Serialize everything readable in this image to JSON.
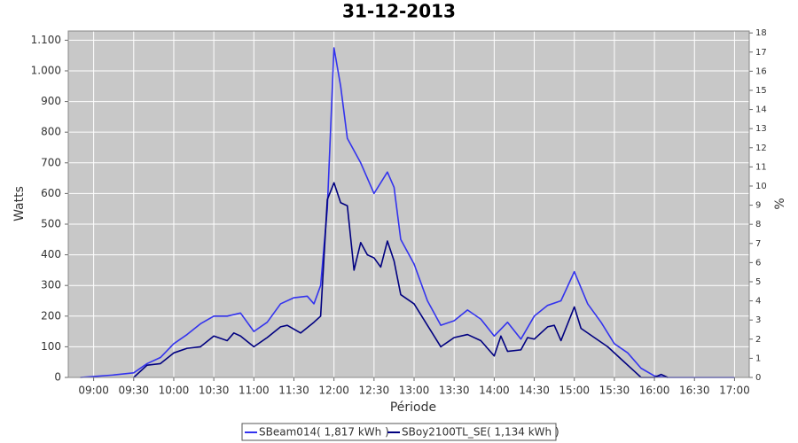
{
  "chart_data": {
    "type": "line",
    "title": "31-12-2013",
    "x_label": "Période",
    "y_label": "Watts",
    "y2_label": "%",
    "xlim": [
      "08:41",
      "17:11"
    ],
    "xticks": [
      "09:00",
      "09:30",
      "10:00",
      "10:30",
      "11:00",
      "11:30",
      "12:00",
      "12:30",
      "13:00",
      "13:30",
      "14:00",
      "14:30",
      "15:00",
      "15:30",
      "16:00",
      "16:30",
      "17:00"
    ],
    "ylim": [
      0,
      1130
    ],
    "yticks": [
      0,
      100,
      200,
      300,
      400,
      500,
      600,
      700,
      800,
      900,
      {
        "value": 1000,
        "label": "1.000"
      },
      {
        "value": 1100,
        "label": "1.100"
      }
    ],
    "y2lim": [
      0,
      18.1
    ],
    "y2ticks": [
      0,
      1,
      2,
      3,
      4,
      5,
      6,
      7,
      8,
      9,
      10,
      11,
      12,
      13,
      14,
      15,
      16,
      17,
      18
    ],
    "grid": true,
    "legend": "bottom",
    "series": [
      {
        "name": "SBeam014( 1,817 kWh )",
        "color": "#3333ee",
        "x": [
          "08:50",
          "09:00",
          "09:15",
          "09:30",
          "09:40",
          "09:50",
          "10:00",
          "10:10",
          "10:20",
          "10:30",
          "10:40",
          "10:50",
          "10:55",
          "11:00",
          "11:10",
          "11:20",
          "11:30",
          "11:40",
          "11:45",
          "11:50",
          "11:55",
          "12:00",
          "12:05",
          "12:10",
          "12:20",
          "12:30",
          "12:40",
          "12:45",
          "12:50",
          "13:00",
          "13:10",
          "13:20",
          "13:30",
          "13:40",
          "13:50",
          "14:00",
          "14:10",
          "14:20",
          "14:30",
          "14:40",
          "14:50",
          "15:00",
          "15:10",
          "15:20",
          "15:30",
          "15:40",
          "15:50",
          "16:00",
          "16:10",
          "16:30",
          "17:00"
        ],
        "values": [
          0,
          3,
          8,
          15,
          45,
          65,
          110,
          140,
          175,
          200,
          200,
          210,
          180,
          150,
          180,
          240,
          260,
          265,
          240,
          300,
          550,
          1075,
          950,
          780,
          700,
          600,
          670,
          620,
          450,
          370,
          250,
          170,
          185,
          220,
          190,
          135,
          180,
          125,
          200,
          235,
          250,
          345,
          240,
          180,
          110,
          80,
          30,
          5,
          0,
          0,
          0
        ]
      },
      {
        "name": "SBoy2100TL_SE( 1,134 kWh )",
        "color": "#000080",
        "x": [
          "09:30",
          "09:40",
          "09:50",
          "10:00",
          "10:10",
          "10:20",
          "10:30",
          "10:40",
          "10:45",
          "10:50",
          "11:00",
          "11:10",
          "11:20",
          "11:25",
          "11:35",
          "11:45",
          "11:50",
          "11:55",
          "12:00",
          "12:05",
          "12:10",
          "12:15",
          "12:20",
          "12:25",
          "12:30",
          "12:35",
          "12:40",
          "12:45",
          "12:50",
          "13:00",
          "13:10",
          "13:20",
          "13:30",
          "13:40",
          "13:50",
          "14:00",
          "14:05",
          "14:10",
          "14:20",
          "14:25",
          "14:30",
          "14:40",
          "14:45",
          "14:50",
          "15:00",
          "15:05",
          "15:15",
          "15:25",
          "15:35",
          "15:45",
          "15:50",
          "16:00",
          "16:05",
          "16:10"
        ],
        "values": [
          0,
          40,
          45,
          80,
          95,
          100,
          135,
          120,
          145,
          135,
          100,
          130,
          165,
          170,
          145,
          180,
          200,
          580,
          635,
          570,
          560,
          350,
          440,
          400,
          390,
          360,
          445,
          380,
          270,
          240,
          170,
          100,
          130,
          140,
          120,
          70,
          135,
          85,
          90,
          130,
          125,
          165,
          170,
          120,
          230,
          160,
          130,
          100,
          60,
          20,
          0,
          0,
          10,
          0
        ]
      }
    ]
  }
}
